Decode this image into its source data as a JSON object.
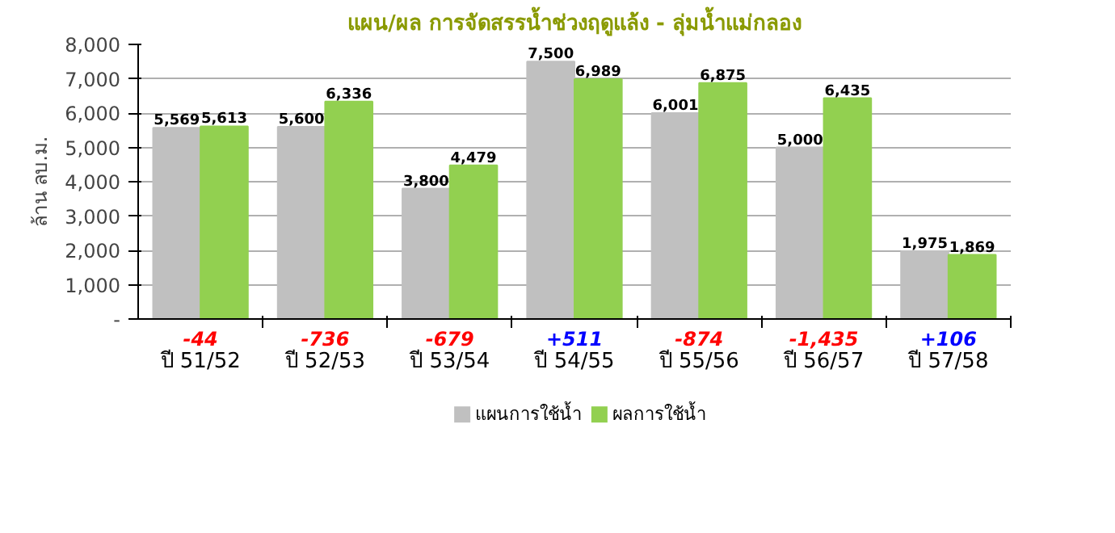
{
  "chart_data": {
    "type": "bar",
    "title": "แผน/ผล การจัดสรรน้ำช่วงฤดูแล้ง - ลุ่มน้ำแม่กลอง",
    "ylabel": "ล้าน ลบ.ม.",
    "categories": [
      "ปี 51/52",
      "ปี 52/53",
      "ปี 53/54",
      "ปี 54/55",
      "ปี 55/56",
      "ปี 56/57",
      "ปี 57/58"
    ],
    "series": [
      {
        "name": "แผนการใช้น้ำ",
        "color": "#c0c0c0",
        "values": [
          5569,
          5600,
          3800,
          7500,
          6001,
          5000,
          1975
        ],
        "value_labels": [
          "5,569",
          "5,600",
          "3,800",
          "7,500",
          "6,001",
          "5,000",
          "1,975"
        ]
      },
      {
        "name": "ผลการใช้น้ำ",
        "color": "#92d050",
        "values": [
          5613,
          6336,
          4479,
          6989,
          6875,
          6435,
          1869
        ],
        "value_labels": [
          "5,613",
          "6,336",
          "4,479",
          "6,989",
          "6,875",
          "6,435",
          "1,869"
        ]
      }
    ],
    "ylim": [
      0,
      8000
    ],
    "yticks": [
      {
        "value": 0,
        "label": "-"
      },
      {
        "value": 1000,
        "label": "1,000"
      },
      {
        "value": 2000,
        "label": "2,000"
      },
      {
        "value": 3000,
        "label": "3,000"
      },
      {
        "value": 4000,
        "label": "4,000"
      },
      {
        "value": 5000,
        "label": "5,000"
      },
      {
        "value": 6000,
        "label": "6,000"
      },
      {
        "value": 7000,
        "label": "7,000"
      },
      {
        "value": 8000,
        "label": "8,000"
      }
    ],
    "grid": "y",
    "legend": "bottom",
    "annotations": [
      "-44",
      "-736",
      "-679",
      "+511",
      "-874",
      "-1,435",
      "+106"
    ]
  }
}
